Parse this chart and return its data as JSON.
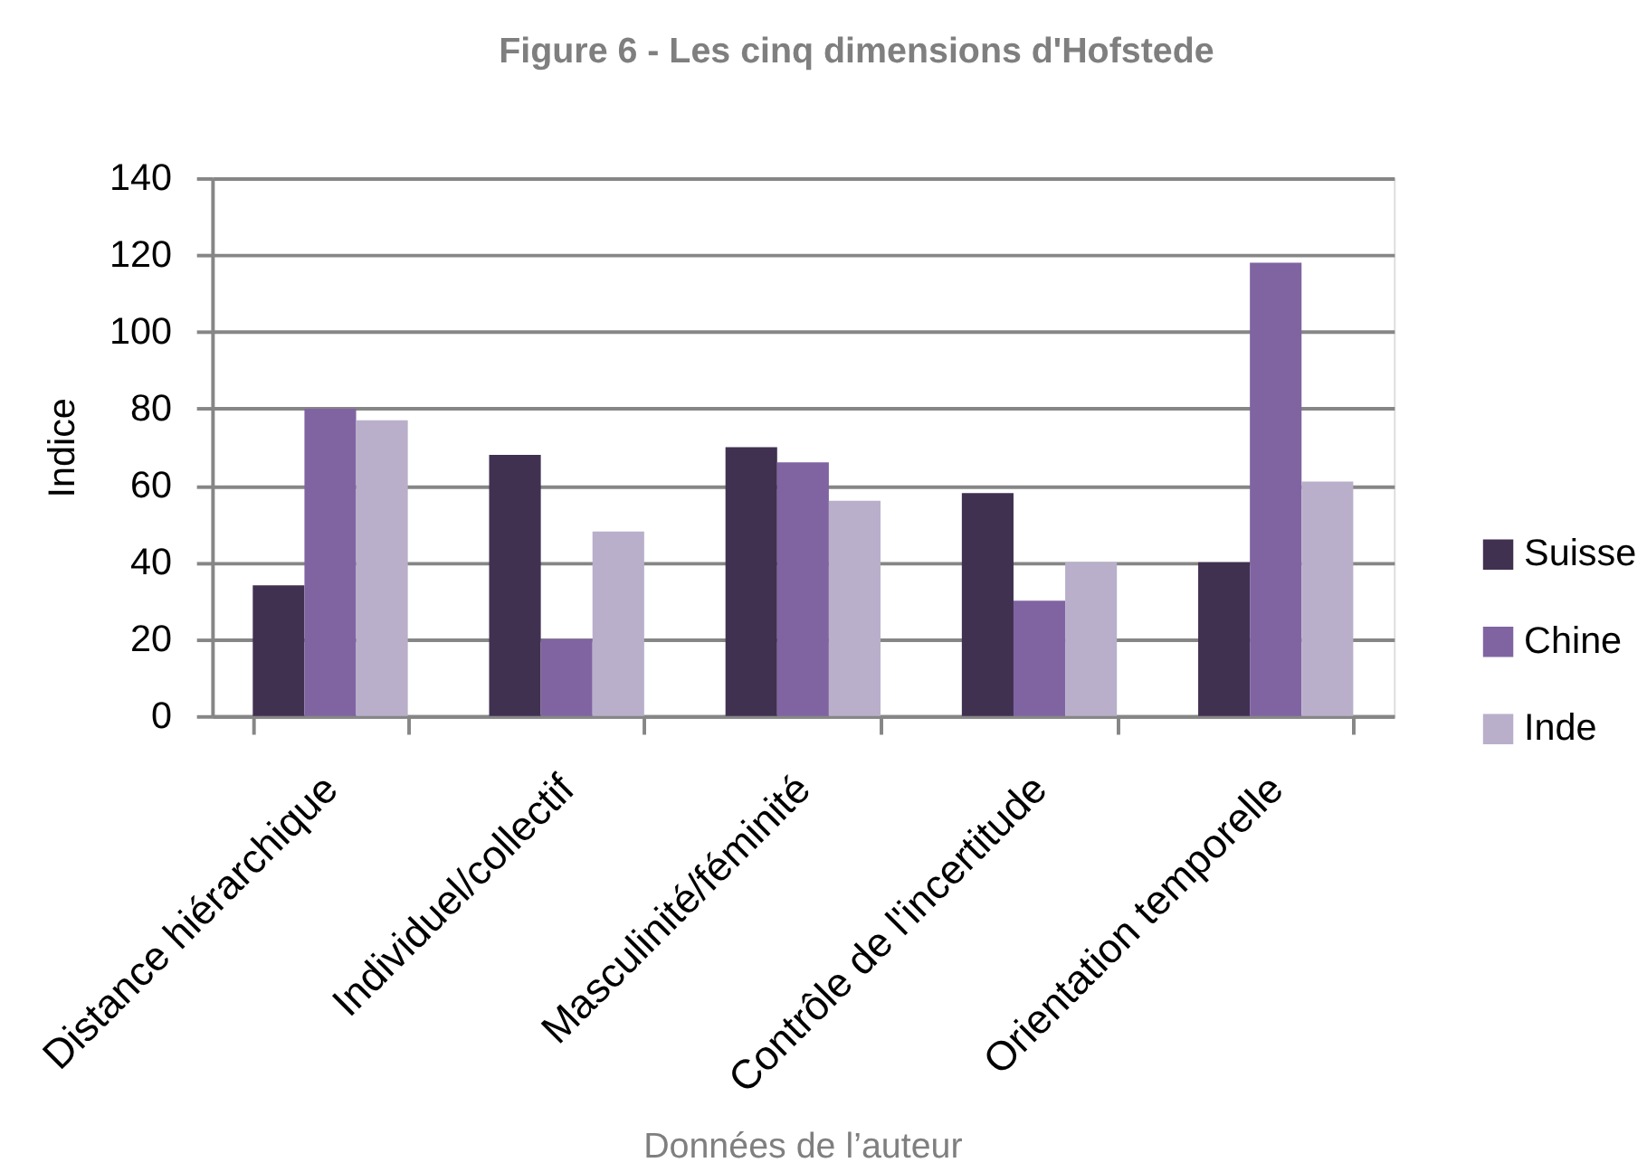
{
  "chart_data": {
    "type": "bar",
    "title": "Figure 6 - Les cinq dimensions d'Hofstede",
    "ylabel": "Indice",
    "categories": [
      "Distance hiérarchique",
      "Individuel/collectif",
      "Masculinité/féminité",
      "Contrôle de l'incertitude",
      "Orientation temporelle"
    ],
    "series": [
      {
        "name": "Suisse",
        "color": "#403151",
        "values": [
          34,
          68,
          70,
          58,
          40
        ]
      },
      {
        "name": "Chine",
        "color": "#8064a2",
        "values": [
          80,
          20,
          66,
          30,
          118
        ]
      },
      {
        "name": "Inde",
        "color": "#b9afca",
        "values": [
          77,
          48,
          56,
          40,
          61
        ]
      }
    ],
    "ylim": [
      0,
      140
    ],
    "yticks": [
      0,
      20,
      40,
      60,
      80,
      100,
      120,
      140
    ],
    "grid": "y",
    "legend": "right",
    "annotations": [
      "Données de l’auteur"
    ]
  }
}
